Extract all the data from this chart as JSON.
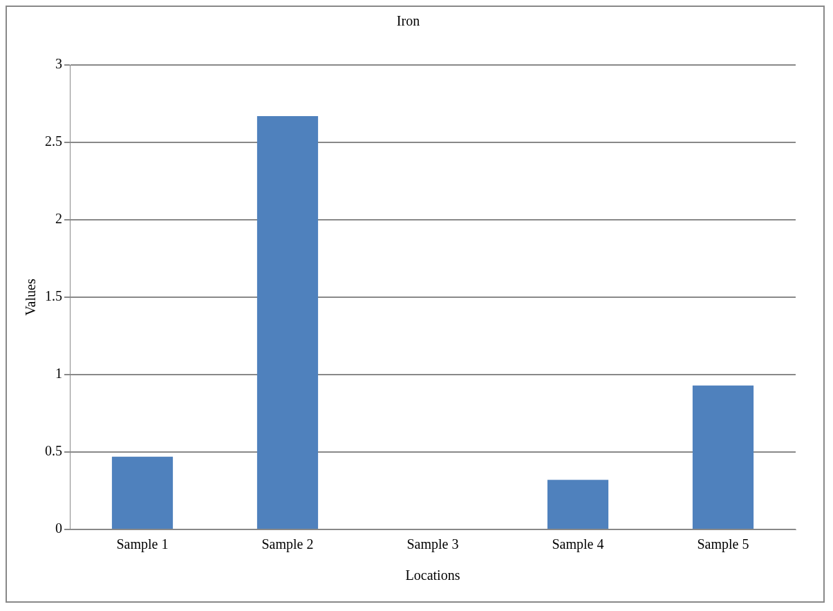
{
  "chart_data": {
    "type": "bar",
    "title": "Iron",
    "xlabel": "Locations",
    "ylabel": "Values",
    "categories": [
      "Sample 1",
      "Sample 2",
      "Sample 3",
      "Sample 4",
      "Sample 5"
    ],
    "values": [
      0.47,
      2.67,
      0,
      0.32,
      0.93
    ],
    "color": "#4f81bd",
    "ylim": [
      0,
      3
    ],
    "yticks": [
      0,
      0.5,
      1,
      1.5,
      2,
      2.5,
      3
    ],
    "grid": "y",
    "legend": false
  }
}
